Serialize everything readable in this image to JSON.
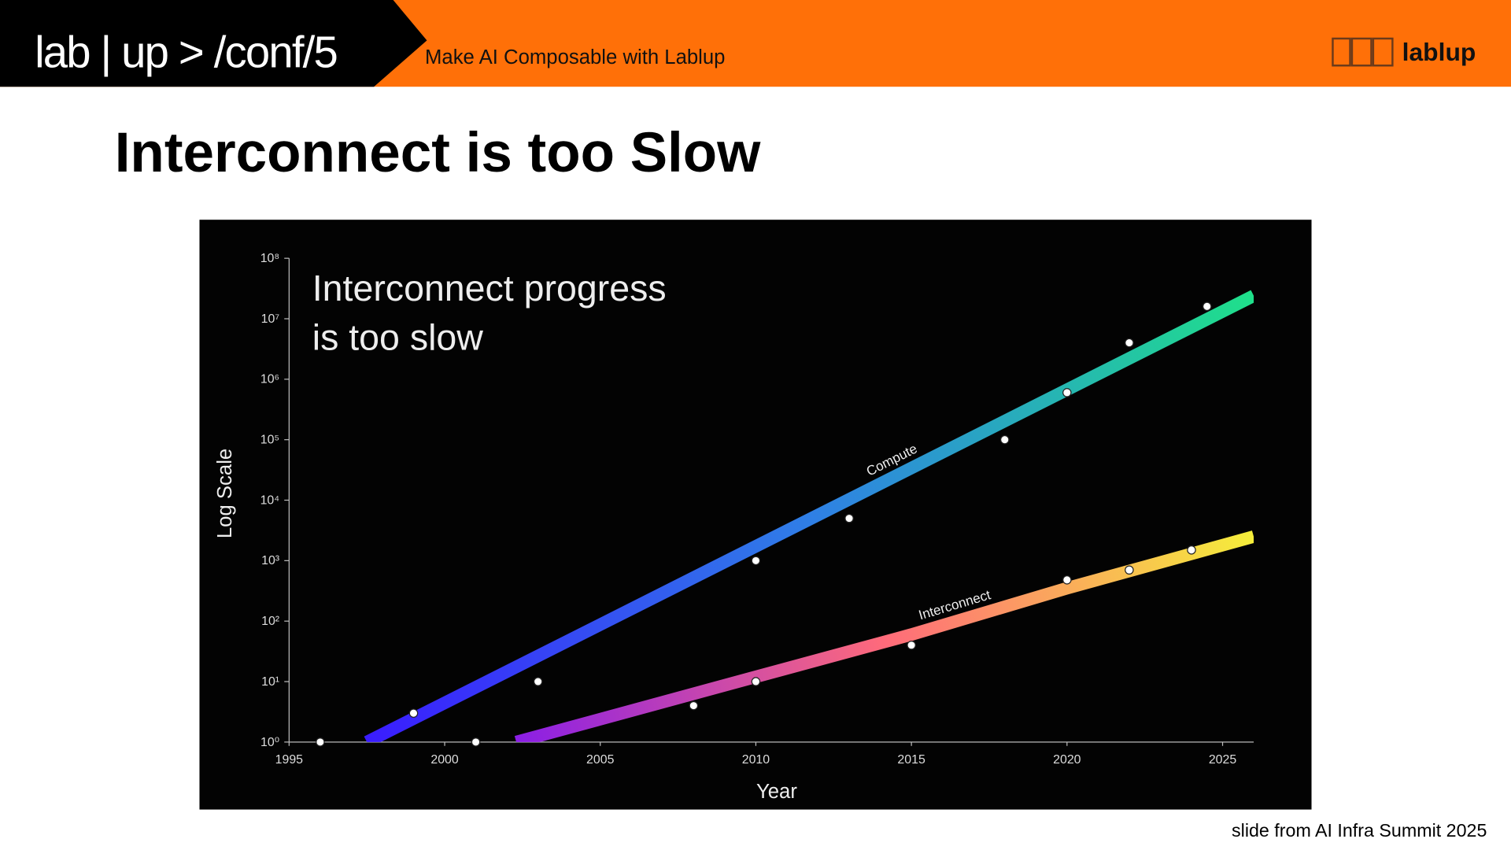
{
  "header": {
    "logo": "lab | up > /conf/5",
    "tagline": "Make AI Composable with Lablup",
    "brand": "lablup"
  },
  "slide_title": "Interconnect is too Slow",
  "footer": "slide from AI Infra Summit 2025",
  "chart_data": {
    "type": "line",
    "title": [
      "Interconnect progress",
      "is too slow"
    ],
    "x_label": "Year",
    "y_label": "Log Scale",
    "log_y": true,
    "xlim": [
      1995,
      2026
    ],
    "ylim": [
      1,
      100000000
    ],
    "xticks": [
      1995,
      2000,
      2005,
      2010,
      2015,
      2020,
      2025
    ],
    "yticks": [
      {
        "value": 1,
        "label": "10⁰"
      },
      {
        "value": 10,
        "label": "10¹"
      },
      {
        "value": 100,
        "label": "10²"
      },
      {
        "value": 1000,
        "label": "10³"
      },
      {
        "value": 10000,
        "label": "10⁴"
      },
      {
        "value": 100000,
        "label": "10⁵"
      },
      {
        "value": 1000000,
        "label": "10⁶"
      },
      {
        "value": 10000000,
        "label": "10⁷"
      },
      {
        "value": 100000000,
        "label": "10⁸"
      }
    ],
    "series": [
      {
        "name": "Compute",
        "colors": [
          "#3a1cff",
          "#2f7fe6",
          "#1fe08a"
        ],
        "x": [
          1997.5,
          2026
        ],
        "values": [
          1,
          24000000
        ],
        "points_x": [
          1996,
          1999,
          2003,
          2010,
          2013,
          2018,
          2020,
          2022,
          2024.5
        ],
        "points": [
          1,
          3,
          10,
          1000,
          5000,
          100000,
          600000,
          4000000,
          16000000
        ]
      },
      {
        "name": "Interconnect",
        "colors": [
          "#8a1ee6",
          "#ff6b7a",
          "#f5ee3a"
        ],
        "x": [
          2002.3,
          2010,
          2015,
          2020,
          2026
        ],
        "values": [
          1,
          12,
          60,
          350,
          2500
        ],
        "points_x": [
          2001,
          2008,
          2010,
          2015,
          2020,
          2022,
          2024
        ],
        "points": [
          1,
          4,
          10,
          40,
          480,
          700,
          1500
        ]
      }
    ]
  }
}
